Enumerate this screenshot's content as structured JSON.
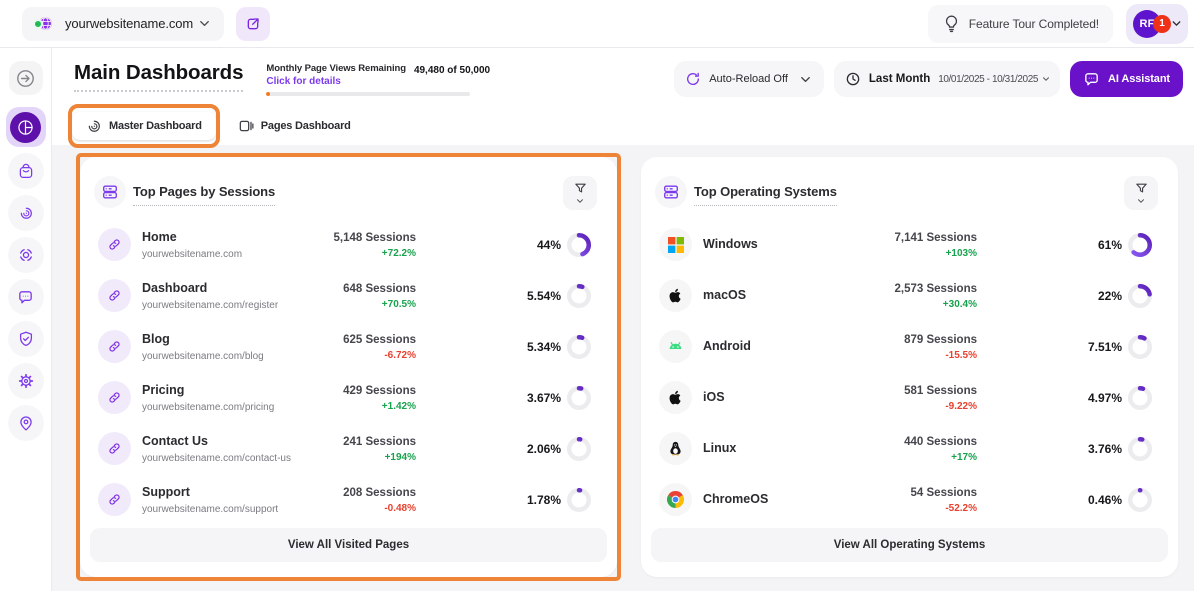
{
  "colors": {
    "accent_purple": "#6a12ca",
    "icon_purple": "#7c3aed",
    "annotation_orange": "#ee8438",
    "positive_green": "#17a24d",
    "negative_red": "#e7402e",
    "progress_orange": "#f4791f"
  },
  "topbar": {
    "site_selector": {
      "value": "yourwebsitename.com",
      "icon": "globe-icon"
    },
    "feature_tour_label": "Feature Tour Completed!",
    "avatar_initials": "RF",
    "notification_count": "1"
  },
  "header": {
    "title": "Main Dashboards",
    "usage": {
      "label": "Monthly Page Views Remaining",
      "link": "Click for details",
      "value": "49,480 of 50,000",
      "progress_pct": 2
    },
    "auto_reload_label": "Auto-Reload Off",
    "period": {
      "label": "Last Month",
      "range": "10/01/2025 - 10/31/2025"
    },
    "ai_button_label": "AI Assistant"
  },
  "tabs": [
    {
      "label": "Master Dashboard",
      "icon": "spiral-icon",
      "active": true,
      "annotated": true
    },
    {
      "label": "Pages Dashboard",
      "icon": "pages-icon",
      "active": false,
      "annotated": false
    }
  ],
  "sidebar": {
    "items": [
      {
        "icon": "expand-icon",
        "kind": "expand"
      },
      {
        "icon": "dashboard-pie-icon",
        "kind": "active"
      },
      {
        "icon": "bag-icon"
      },
      {
        "icon": "spiral-icon"
      },
      {
        "icon": "capture-icon"
      },
      {
        "icon": "chat-icon"
      },
      {
        "icon": "shield-check-icon"
      },
      {
        "icon": "gear-icon"
      },
      {
        "icon": "pin-user-icon"
      }
    ]
  },
  "cards": [
    {
      "title": "Top Pages by Sessions",
      "header_icon": "server-icon",
      "filter_icon": "funnel-icon",
      "annotated": true,
      "footer_label": "View All Visited Pages",
      "rows": [
        {
          "icon": "link-icon",
          "name": "Home",
          "detail": "yourwebsitename.com",
          "sessions": "5,148 Sessions",
          "change": "+72.2%",
          "trend": "up",
          "share": "44%",
          "share_value": 44
        },
        {
          "icon": "link-icon",
          "name": "Dashboard",
          "detail": "yourwebsitename.com/register",
          "sessions": "648 Sessions",
          "change": "+70.5%",
          "trend": "up",
          "share": "5.54%",
          "share_value": 5.54
        },
        {
          "icon": "link-icon",
          "name": "Blog",
          "detail": "yourwebsitename.com/blog",
          "sessions": "625 Sessions",
          "change": "-6.72%",
          "trend": "down",
          "share": "5.34%",
          "share_value": 5.34
        },
        {
          "icon": "link-icon",
          "name": "Pricing",
          "detail": "yourwebsitename.com/pricing",
          "sessions": "429 Sessions",
          "change": "+1.42%",
          "trend": "up",
          "share": "3.67%",
          "share_value": 3.67
        },
        {
          "icon": "link-icon",
          "name": "Contact Us",
          "detail": "yourwebsitename.com/contact-us",
          "sessions": "241 Sessions",
          "change": "+194%",
          "trend": "up",
          "share": "2.06%",
          "share_value": 2.06
        },
        {
          "icon": "link-icon",
          "name": "Support",
          "detail": "yourwebsitename.com/support",
          "sessions": "208 Sessions",
          "change": "-0.48%",
          "trend": "down",
          "share": "1.78%",
          "share_value": 1.78
        }
      ]
    },
    {
      "title": "Top Operating Systems",
      "header_icon": "server-icon",
      "filter_icon": "funnel-icon",
      "annotated": false,
      "footer_label": "View All Operating Systems",
      "rows": [
        {
          "icon": "windows-icon",
          "name": "Windows",
          "detail": null,
          "sessions": "7,141 Sessions",
          "change": "+103%",
          "trend": "up",
          "share": "61%",
          "share_value": 61
        },
        {
          "icon": "apple-icon",
          "name": "macOS",
          "detail": null,
          "sessions": "2,573 Sessions",
          "change": "+30.4%",
          "trend": "up",
          "share": "22%",
          "share_value": 22
        },
        {
          "icon": "android-icon",
          "name": "Android",
          "detail": null,
          "sessions": "879 Sessions",
          "change": "-15.5%",
          "trend": "down",
          "share": "7.51%",
          "share_value": 7.51
        },
        {
          "icon": "apple-icon",
          "name": "iOS",
          "detail": null,
          "sessions": "581 Sessions",
          "change": "-9.22%",
          "trend": "down",
          "share": "4.97%",
          "share_value": 4.97
        },
        {
          "icon": "linux-icon",
          "name": "Linux",
          "detail": null,
          "sessions": "440 Sessions",
          "change": "+17%",
          "trend": "up",
          "share": "3.76%",
          "share_value": 3.76
        },
        {
          "icon": "chrome-icon",
          "name": "ChromeOS",
          "detail": null,
          "sessions": "54 Sessions",
          "change": "-52.2%",
          "trend": "down",
          "share": "0.46%",
          "share_value": 0.46
        }
      ]
    }
  ]
}
